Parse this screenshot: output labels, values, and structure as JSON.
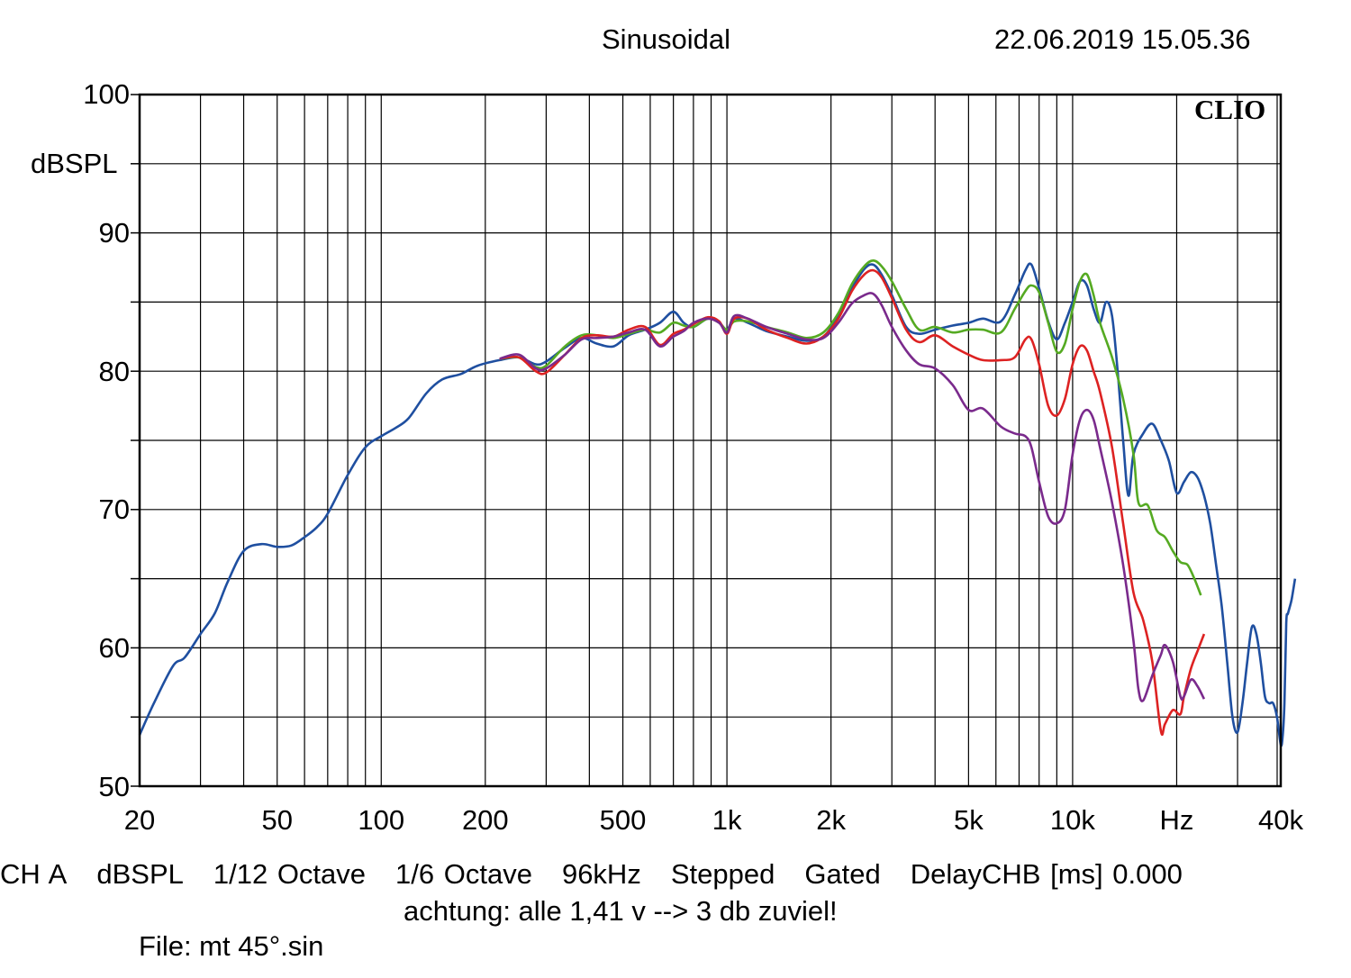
{
  "header": {
    "title": "Sinusoidal",
    "timestamp": "22.06.2019 15.05.36"
  },
  "brand": "CLIO",
  "footer": {
    "items": [
      "CH A",
      "dBSPL",
      "1/12 Octave",
      "1/6 Octave",
      "96kHz",
      "Stepped",
      "Gated",
      "DelayCHB [ms] 0.000"
    ],
    "note": "achtung: alle 1,41 v --> 3 db zuviel!",
    "file": "File: mt 45°.sin"
  },
  "chart_data": {
    "type": "line",
    "title": "Sinusoidal",
    "xlabel": "Hz",
    "ylabel": "dBSPL",
    "xscale": "log",
    "xlim": [
      20,
      40000
    ],
    "ylim": [
      50,
      100
    ],
    "grid": true,
    "y_ticks": [
      "100",
      "90",
      "80",
      "70",
      "60",
      "50"
    ],
    "x_ticks": [
      {
        "value": 20,
        "label": "20"
      },
      {
        "value": 50,
        "label": "50"
      },
      {
        "value": 100,
        "label": "100"
      },
      {
        "value": 200,
        "label": "200"
      },
      {
        "value": 500,
        "label": "500"
      },
      {
        "value": 1000,
        "label": "1k"
      },
      {
        "value": 2000,
        "label": "2k"
      },
      {
        "value": 5000,
        "label": "5k"
      },
      {
        "value": 10000,
        "label": "10k"
      },
      {
        "value": 20000,
        "label": "Hz"
      },
      {
        "value": 40000,
        "label": "40k"
      }
    ],
    "series": [
      {
        "color": "#1f4fa0",
        "points": [
          [
            20,
            53.7
          ],
          [
            22,
            56
          ],
          [
            25,
            58.7
          ],
          [
            27,
            59.3
          ],
          [
            30,
            61
          ],
          [
            33,
            62.5
          ],
          [
            36,
            64.8
          ],
          [
            40,
            67
          ],
          [
            45,
            67.5
          ],
          [
            50,
            67.3
          ],
          [
            55,
            67.4
          ],
          [
            60,
            68
          ],
          [
            65,
            68.7
          ],
          [
            70,
            69.7
          ],
          [
            80,
            72.5
          ],
          [
            90,
            74.5
          ],
          [
            100,
            75.3
          ],
          [
            110,
            75.9
          ],
          [
            120,
            76.6
          ],
          [
            135,
            78.4
          ],
          [
            150,
            79.4
          ],
          [
            170,
            79.8
          ],
          [
            190,
            80.4
          ],
          [
            220,
            80.8
          ],
          [
            250,
            81
          ],
          [
            280,
            80.5
          ],
          [
            300,
            80.7
          ],
          [
            340,
            81.7
          ],
          [
            380,
            82.4
          ],
          [
            420,
            82
          ],
          [
            470,
            81.8
          ],
          [
            520,
            82.6
          ],
          [
            580,
            83
          ],
          [
            640,
            83.5
          ],
          [
            700,
            84.3
          ],
          [
            750,
            83.5
          ],
          [
            800,
            83.2
          ],
          [
            880,
            83.8
          ],
          [
            950,
            83.5
          ],
          [
            1000,
            83
          ],
          [
            1050,
            83.8
          ],
          [
            1150,
            83.5
          ],
          [
            1300,
            82.9
          ],
          [
            1500,
            82.5
          ],
          [
            1700,
            82.2
          ],
          [
            1900,
            82.5
          ],
          [
            2100,
            84
          ],
          [
            2300,
            86
          ],
          [
            2500,
            87.4
          ],
          [
            2650,
            87.7
          ],
          [
            2800,
            87
          ],
          [
            3000,
            85.5
          ],
          [
            3300,
            83.2
          ],
          [
            3600,
            82.7
          ],
          [
            4000,
            83
          ],
          [
            4500,
            83.3
          ],
          [
            5000,
            83.5
          ],
          [
            5500,
            83.8
          ],
          [
            6200,
            83.6
          ],
          [
            6800,
            85.5
          ],
          [
            7300,
            87.3
          ],
          [
            7600,
            87.7
          ],
          [
            8000,
            86
          ],
          [
            8500,
            83.6
          ],
          [
            9000,
            82.3
          ],
          [
            9500,
            83.5
          ],
          [
            10000,
            85
          ],
          [
            10500,
            86.5
          ],
          [
            11000,
            86.2
          ],
          [
            11500,
            84.5
          ],
          [
            12000,
            83.5
          ],
          [
            12500,
            85
          ],
          [
            13000,
            84
          ],
          [
            13500,
            80
          ],
          [
            14000,
            75
          ],
          [
            14500,
            71
          ],
          [
            15000,
            74
          ],
          [
            16000,
            75.5
          ],
          [
            17000,
            76.2
          ],
          [
            18000,
            75
          ],
          [
            19000,
            73.5
          ],
          [
            20000,
            71.2
          ],
          [
            21000,
            72
          ],
          [
            22000,
            72.7
          ],
          [
            23000,
            72.3
          ],
          [
            24000,
            71
          ],
          [
            25000,
            69
          ],
          [
            26000,
            66
          ],
          [
            27000,
            63
          ],
          [
            28000,
            59
          ],
          [
            29000,
            55
          ],
          [
            30000,
            53.9
          ],
          [
            31000,
            56
          ],
          [
            32000,
            59
          ],
          [
            33000,
            61.5
          ],
          [
            34000,
            61
          ],
          [
            35000,
            59
          ],
          [
            36000,
            56.5
          ],
          [
            37000,
            56
          ],
          [
            38000,
            56
          ],
          [
            39000,
            55
          ],
          [
            40000,
            53
          ],
          [
            40500,
            53.6
          ],
          [
            41000,
            56
          ],
          [
            41500,
            61.8
          ],
          [
            42000,
            62.5
          ],
          [
            43000,
            63.5
          ],
          [
            44000,
            65
          ]
        ]
      },
      {
        "color": "#55aa22",
        "points": [
          [
            220,
            80.9
          ],
          [
            250,
            81
          ],
          [
            280,
            80.3
          ],
          [
            300,
            80.4
          ],
          [
            340,
            81.8
          ],
          [
            380,
            82.6
          ],
          [
            420,
            82.6
          ],
          [
            470,
            82.4
          ],
          [
            520,
            82.7
          ],
          [
            580,
            83
          ],
          [
            640,
            82.8
          ],
          [
            700,
            83.5
          ],
          [
            750,
            83.3
          ],
          [
            800,
            83.2
          ],
          [
            880,
            83.8
          ],
          [
            950,
            83.5
          ],
          [
            1000,
            83
          ],
          [
            1050,
            83.6
          ],
          [
            1150,
            83.6
          ],
          [
            1300,
            83.2
          ],
          [
            1500,
            82.8
          ],
          [
            1700,
            82.4
          ],
          [
            1900,
            82.8
          ],
          [
            2100,
            84.2
          ],
          [
            2300,
            86.3
          ],
          [
            2500,
            87.6
          ],
          [
            2650,
            88
          ],
          [
            2800,
            87.6
          ],
          [
            3000,
            86.5
          ],
          [
            3300,
            84.5
          ],
          [
            3600,
            83
          ],
          [
            4000,
            83.2
          ],
          [
            4500,
            82.8
          ],
          [
            5000,
            83
          ],
          [
            5500,
            83
          ],
          [
            6200,
            82.8
          ],
          [
            6800,
            84.5
          ],
          [
            7300,
            85.8
          ],
          [
            7600,
            86.2
          ],
          [
            8000,
            85.7
          ],
          [
            8500,
            83.5
          ],
          [
            9000,
            81.4
          ],
          [
            9500,
            82
          ],
          [
            10000,
            84.5
          ],
          [
            10500,
            86.5
          ],
          [
            11000,
            87
          ],
          [
            11500,
            85.5
          ],
          [
            12000,
            83.5
          ],
          [
            13000,
            81
          ],
          [
            14000,
            78
          ],
          [
            15000,
            74
          ],
          [
            15500,
            70.5
          ],
          [
            16500,
            70.3
          ],
          [
            17500,
            68.5
          ],
          [
            18500,
            68
          ],
          [
            19500,
            67
          ],
          [
            20500,
            66.2
          ],
          [
            21500,
            66
          ],
          [
            22500,
            65
          ],
          [
            23500,
            63.8
          ]
        ]
      },
      {
        "color": "#dd2222",
        "points": [
          [
            220,
            80.9
          ],
          [
            250,
            81
          ],
          [
            280,
            80
          ],
          [
            300,
            79.9
          ],
          [
            340,
            81.2
          ],
          [
            380,
            82.4
          ],
          [
            420,
            82.6
          ],
          [
            470,
            82.5
          ],
          [
            520,
            83
          ],
          [
            580,
            83.2
          ],
          [
            640,
            81.9
          ],
          [
            700,
            82.7
          ],
          [
            750,
            83
          ],
          [
            800,
            83.4
          ],
          [
            880,
            83.9
          ],
          [
            950,
            83.6
          ],
          [
            1000,
            82.7
          ],
          [
            1050,
            83.8
          ],
          [
            1150,
            83.8
          ],
          [
            1300,
            83
          ],
          [
            1500,
            82.4
          ],
          [
            1700,
            82
          ],
          [
            1900,
            82.5
          ],
          [
            2100,
            83.8
          ],
          [
            2300,
            85.8
          ],
          [
            2500,
            87
          ],
          [
            2650,
            87.3
          ],
          [
            2800,
            86.8
          ],
          [
            3000,
            85.3
          ],
          [
            3300,
            83
          ],
          [
            3600,
            82.1
          ],
          [
            4000,
            82.6
          ],
          [
            4500,
            81.8
          ],
          [
            5000,
            81.2
          ],
          [
            5500,
            80.8
          ],
          [
            6200,
            80.8
          ],
          [
            6800,
            81
          ],
          [
            7300,
            82.3
          ],
          [
            7600,
            82.3
          ],
          [
            8000,
            80.5
          ],
          [
            8500,
            77.5
          ],
          [
            9000,
            76.8
          ],
          [
            9500,
            78
          ],
          [
            10000,
            80.5
          ],
          [
            10500,
            81.8
          ],
          [
            11000,
            81.5
          ],
          [
            11500,
            80
          ],
          [
            12000,
            78.5
          ],
          [
            13000,
            74.5
          ],
          [
            14000,
            69
          ],
          [
            15000,
            64
          ],
          [
            16000,
            62
          ],
          [
            17000,
            59
          ],
          [
            18000,
            54
          ],
          [
            18500,
            54.5
          ],
          [
            19500,
            55.5
          ],
          [
            20500,
            55.2
          ],
          [
            21000,
            56.5
          ],
          [
            22000,
            58.5
          ],
          [
            23000,
            59.8
          ],
          [
            24000,
            61
          ]
        ]
      },
      {
        "color": "#7a2a8c",
        "points": [
          [
            220,
            80.9
          ],
          [
            250,
            81.2
          ],
          [
            280,
            80.2
          ],
          [
            300,
            80.2
          ],
          [
            340,
            81.2
          ],
          [
            380,
            82.3
          ],
          [
            420,
            82.4
          ],
          [
            470,
            82.5
          ],
          [
            520,
            82.8
          ],
          [
            580,
            83
          ],
          [
            640,
            81.8
          ],
          [
            700,
            82.5
          ],
          [
            750,
            82.9
          ],
          [
            800,
            83.5
          ],
          [
            880,
            83.8
          ],
          [
            950,
            83.5
          ],
          [
            1000,
            82.8
          ],
          [
            1050,
            84
          ],
          [
            1150,
            83.8
          ],
          [
            1300,
            83.2
          ],
          [
            1500,
            82.7
          ],
          [
            1700,
            82.3
          ],
          [
            1900,
            82.4
          ],
          [
            2100,
            83.5
          ],
          [
            2300,
            84.9
          ],
          [
            2500,
            85.5
          ],
          [
            2650,
            85.6
          ],
          [
            2800,
            84.8
          ],
          [
            3000,
            83.2
          ],
          [
            3300,
            81.5
          ],
          [
            3600,
            80.5
          ],
          [
            4000,
            80.2
          ],
          [
            4500,
            79
          ],
          [
            5000,
            77.2
          ],
          [
            5500,
            77.3
          ],
          [
            6200,
            76
          ],
          [
            6800,
            75.5
          ],
          [
            7300,
            75.3
          ],
          [
            7600,
            74.5
          ],
          [
            8000,
            72
          ],
          [
            8500,
            69.5
          ],
          [
            9000,
            69
          ],
          [
            9500,
            70
          ],
          [
            10000,
            74
          ],
          [
            10500,
            76.5
          ],
          [
            11000,
            77.2
          ],
          [
            11500,
            76.5
          ],
          [
            12000,
            74.5
          ],
          [
            13000,
            70.5
          ],
          [
            14000,
            66
          ],
          [
            15000,
            60.5
          ],
          [
            15500,
            57
          ],
          [
            16000,
            56.2
          ],
          [
            17000,
            58
          ],
          [
            18000,
            59.5
          ],
          [
            18500,
            60.2
          ],
          [
            19500,
            59
          ],
          [
            20500,
            56.5
          ],
          [
            21000,
            56.5
          ],
          [
            22000,
            57.7
          ],
          [
            23000,
            57.2
          ],
          [
            24000,
            56.3
          ]
        ]
      }
    ]
  }
}
